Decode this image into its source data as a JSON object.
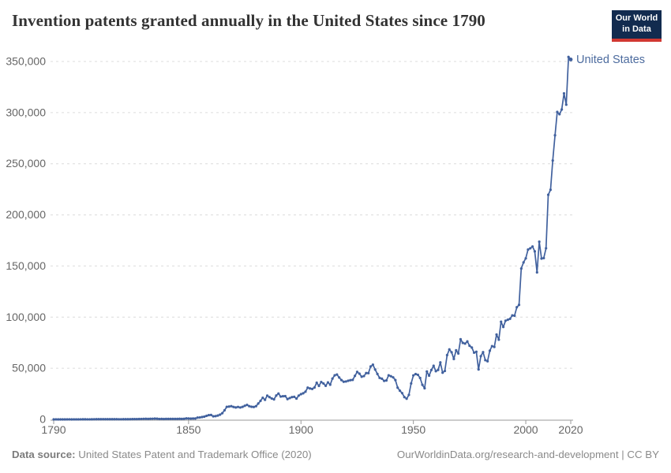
{
  "header": {
    "logo": {
      "line1": "Our World",
      "line2": "in Data",
      "bg_color": "#122b4f",
      "bar_color": "#d13832",
      "text_color": "#ffffff"
    }
  },
  "chart_data": {
    "type": "line",
    "title": "Invention patents granted annually in the United States since 1790",
    "xlabel": "",
    "ylabel": "",
    "xlim": [
      1790,
      2020
    ],
    "ylim": [
      0,
      350000
    ],
    "xticks": [
      1790,
      1850,
      1900,
      1950,
      2000,
      2020
    ],
    "yticks": [
      0,
      50000,
      100000,
      150000,
      200000,
      250000,
      300000,
      350000
    ],
    "ytick_format": "comma-thousands",
    "grid": "dashed-horizontal",
    "legend": "end-of-line-label",
    "marker": "point-per-year",
    "series": [
      {
        "name": "United States",
        "color": "#41619e",
        "label_color": "#4c6b9e",
        "x_start": 1790,
        "x_step": 1,
        "x_end": 2020,
        "values": [
          3,
          33,
          11,
          20,
          22,
          12,
          44,
          51,
          28,
          44,
          41,
          44,
          65,
          97,
          84,
          57,
          63,
          99,
          158,
          203,
          223,
          215,
          238,
          181,
          210,
          173,
          206,
          174,
          222,
          156,
          155,
          168,
          200,
          173,
          228,
          304,
          323,
          331,
          368,
          447,
          544,
          573,
          474,
          586,
          630,
          752,
          702,
          426,
          514,
          404,
          458,
          490,
          488,
          493,
          478,
          473,
          566,
          495,
          583,
          984,
          883,
          752,
          885,
          844,
          1755,
          1881,
          2302,
          2674,
          3455,
          4160,
          4357,
          3020,
          3214,
          3773,
          4630,
          6088,
          8863,
          12277,
          12526,
          12931,
          12137,
          11659,
          12180,
          11616,
          12230,
          13291,
          14169,
          12920,
          12345,
          12165,
          12903,
          15500,
          18091,
          21162,
          19118,
          23285,
          21767,
          20403,
          19551,
          23324,
          25313,
          22312,
          22647,
          22750,
          19855,
          20856,
          21822,
          22067,
          20377,
          23278,
          24644,
          25546,
          27119,
          31029,
          30258,
          29775,
          31170,
          35859,
          32735,
          36561,
          35141,
          32856,
          36198,
          33917,
          39892,
          43118,
          43892,
          40935,
          38452,
          36797,
          37060,
          37798,
          38369,
          38616,
          42574,
          46432,
          44733,
          41717,
          42357,
          45267,
          45226,
          51756,
          53458,
          48774,
          44420,
          40618,
          39782,
          37683,
          38061,
          43073,
          42238,
          41109,
          38449,
          31054,
          28053,
          25695,
          21803,
          20191,
          23963,
          35131,
          43040,
          44326,
          43616,
          40468,
          33809,
          30432,
          46817,
          42744,
          48330,
          52408,
          47170,
          48368,
          55691,
          45679,
          47376,
          62857,
          68406,
          65652,
          59104,
          67559,
          64427,
          78317,
          74810,
          74143,
          76278,
          71994,
          70226,
          65269,
          66102,
          48854,
          61819,
          65771,
          57888,
          56860,
          67200,
          71661,
          70860,
          82952,
          77924,
          95537,
          90364,
          96511,
          97444,
          98342,
          101676,
          101419,
          109645,
          111984,
          147520,
          153485,
          157494,
          166035,
          167331,
          169028,
          164293,
          143806,
          173772,
          157282,
          157772,
          167349,
          219614,
          224505,
          253155,
          277835,
          300678,
          298407,
          303049,
          318829,
          307759,
          354430,
          351993
        ]
      }
    ],
    "colors": {
      "grid": "#dcdcdc",
      "axis": "#999999",
      "tick_text": "#666666",
      "title_text": "#333333",
      "footer_text": "#8a8a8a"
    }
  },
  "footer": {
    "source_label": "Data source:",
    "source_text": " United States Patent and Trademark Office (2020)",
    "link_text": "OurWorldinData.org/research-and-development | CC BY"
  }
}
